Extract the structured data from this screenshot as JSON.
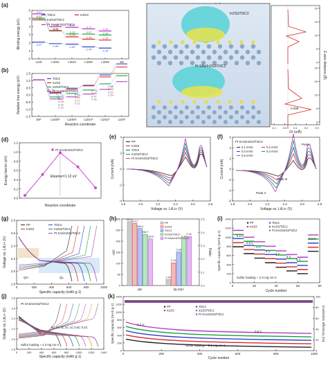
{
  "panels": {
    "a": {
      "letter": "(a)",
      "ylabel": "-Binding energy (eV)",
      "yticks": [
        "6",
        "5",
        "4",
        "3",
        "2",
        "1",
        "0"
      ],
      "xticks": [
        "Li2S",
        "Li2S2",
        "Li2S4",
        "Li2S6",
        "Li2S8",
        "S8"
      ],
      "legend": [
        "Ti3C2",
        "In2S3",
        "In2S3/Ti3C2",
        "Pt SAs/In2S3/Ti3C2"
      ],
      "colors": [
        "#2f44c8",
        "#d62a2a",
        "#1a9e3c",
        "#b23bc5"
      ],
      "chart_data": {
        "type": "line",
        "categories": [
          "Li2S",
          "Li2S2",
          "Li2S4",
          "Li2S6",
          "Li2S8",
          "S8"
        ],
        "series": [
          {
            "name": "Pt SAs/In2S3/Ti3C2",
            "values": [
              5.57,
              3.98,
              3.91,
              3.72,
              3.45,
              null
            ]
          },
          {
            "name": "In2S3/Ti3C2",
            "values": [
              5.03,
              3.46,
              3.09,
              3.07,
              2.96,
              null
            ]
          },
          {
            "name": "In2S3",
            "values": [
              4.83,
              3.51,
              2.73,
              2.44,
              2.33,
              null
            ]
          },
          {
            "name": "Ti3C2",
            "values": [
              2.07,
              1.89,
              1.82,
              1.49,
              1.34,
              null
            ]
          }
        ],
        "extra_labels": [
          "2.44",
          "1.34",
          "1.28"
        ]
      }
    },
    "b": {
      "letter": "(b)",
      "ylabel": "Relative free energy (eV)",
      "xlabel": "Reaction coordinate",
      "yticks": [
        "1.5",
        "1.0",
        "0.5",
        "0.0",
        "-0.5",
        "-1.0",
        "-1.5"
      ],
      "xticks": [
        "S8*",
        "Li2S8*",
        "Li2S6*",
        "Li2S4*",
        "Li2S2*",
        "Li2S*"
      ],
      "legend": [
        "Ti3C2",
        "In2S3",
        "In2S3/Ti3C2",
        "Pt SAs/In2S3/Ti3C2"
      ],
      "labels": [
        "-2.89",
        "-2.98",
        "-3.54",
        "-3.85",
        "0.32",
        "0.28",
        "0.26",
        "0.16",
        "0.22",
        "0.30",
        "0.27",
        "0.21",
        "0.79",
        "0.68",
        "0.47",
        "0.36",
        "0.84",
        "0.75",
        "0.62",
        "0.59"
      ]
    },
    "c": {
      "letter": "(c)",
      "top_label": "In2S3/Ti3C2",
      "bottom_label": "Pt SAs/In2S3/Ti3C2",
      "ylabel": "Z-axis distance (Å)",
      "xlabel": "Dr (e/Å)",
      "yticks_top": [
        "20",
        "15",
        "10",
        "5",
        "0"
      ],
      "yticks_bottom": [
        "20",
        "15",
        "10",
        "5",
        "0"
      ],
      "xticks": [
        "-0.1",
        "0.0",
        "0.1",
        "0.2",
        "0.3"
      ],
      "annotation": "0.098"
    },
    "d": {
      "letter": "(d)",
      "ylabel": "Energy barrier (eV)",
      "xlabel": "Reaction coordinate",
      "yticks": [
        "1.2",
        "1.0",
        "0.8",
        "0.6",
        "0.4",
        "0.2",
        "0.0"
      ],
      "legend": "Pt SAs/In2S3/Ti3C2",
      "annotation": "Ebarrier=1.12 eV",
      "chart_data": {
        "type": "line",
        "x": [
          0,
          1,
          2,
          3,
          4
        ],
        "y": [
          0.0,
          0.55,
          1.12,
          0.75,
          0.2
        ]
      }
    },
    "e": {
      "letter": "(e)",
      "ylabel": "Current (mA)",
      "xlabel": "Voltage vs. Li/Li+ (V)",
      "xticks": [
        "1.8",
        "2.0",
        "2.2",
        "2.4",
        "2.6",
        "2.8"
      ],
      "yticks": [
        "4",
        "2",
        "0",
        "-2",
        "-4"
      ],
      "legend": [
        "PP",
        "In2S3",
        "Ti3C2",
        "In2S3/Ti3C2",
        "Pt SAs/In2S3/Ti3C2"
      ]
    },
    "f": {
      "letter": "(f)",
      "ylabel": "Current (mA)",
      "xlabel": "Voltage vs. Li/Li+ (V)",
      "xticks": [
        "1.8",
        "2.0",
        "2.2",
        "2.4",
        "2.6",
        "2.8"
      ],
      "yticks": [
        "6",
        "4",
        "2",
        "0",
        "-2",
        "-4",
        "-6"
      ],
      "title": "Pt SAs/In2S3/Ti3C2",
      "legend": [
        "0.1 mV/s",
        "0.2 mV/s",
        "0.3 mV/s",
        "0.4 mV/s",
        "0.5 mV/s"
      ],
      "peaks": [
        "Peak I",
        "Peak II",
        "Peak III"
      ]
    },
    "g": {
      "letter": "(g)",
      "ylabel": "Voltage vs. Li/Li+ (V)",
      "xlabel": "Specific capacity (mAh g-1)",
      "xticks": [
        "0",
        "200",
        "400",
        "600",
        "800",
        "1000"
      ],
      "yticks": [
        "2.8",
        "2.6",
        "2.4",
        "2.2",
        "2.0",
        "1.8"
      ],
      "legend": [
        "PP",
        "In2S3",
        "Ti3C2",
        "In2S3/Ti3C2",
        "Pt SAs/In2S3/Ti3C2"
      ],
      "q1": "QH",
      "q2": "QL"
    },
    "h": {
      "letter": "(h)",
      "ylabel_left": "mV",
      "ylabel_right": "Ratio",
      "legend": [
        "PP",
        "In2S3",
        "Ti3C2",
        "In2S3/Ti3C2",
        "Pt SAs/In2S3/Ti3C2"
      ],
      "xticks": [
        "ΔE",
        "QL/QH"
      ],
      "yticks_left": [
        "300",
        "250",
        "200",
        "150",
        "100",
        "50",
        "0"
      ],
      "yticks_right": [
        "2.5",
        "2.4",
        "2.3",
        "2.2",
        "2.1",
        "2.0"
      ],
      "chart_data": {
        "type": "bar",
        "categories": [
          "ΔE",
          "QL/QH"
        ],
        "series": [
          {
            "name": "PP",
            "values": [
              320.2,
              2.05
            ]
          },
          {
            "name": "In2S3",
            "values": [
              311.2,
              2.19
            ]
          },
          {
            "name": "Ti3C2",
            "values": [
              285.4,
              2.28
            ]
          },
          {
            "name": "In2S3/Ti3C2",
            "values": [
              256.7,
              2.39
            ]
          },
          {
            "name": "Pt SAs/In2S3/Ti3C2",
            "values": [
              233.9,
              2.41
            ]
          }
        ]
      }
    },
    "i": {
      "letter": "(i)",
      "ylabel": "Specific capacity (mAh g-1)",
      "xlabel": "Cycle number",
      "xticks": [
        "0",
        "20",
        "40",
        "60",
        "80"
      ],
      "yticks": [
        "1400",
        "1200",
        "1000",
        "800",
        "600",
        "400",
        "200",
        "0"
      ],
      "legend": [
        "PP",
        "In2S3",
        "Ti3C2",
        "In2S3/Ti3C2",
        "Pt SAs/In2S3/Ti3C2"
      ],
      "rates": [
        "0.2 C",
        "0.5 C",
        "1 C",
        "2 C",
        "3 C",
        "4 C",
        "5 C",
        "0.2 C"
      ],
      "loading": "Sulfur loading ~ 2.3 mg cm-2"
    },
    "j": {
      "letter": "(j)",
      "ylabel": "Voltage vs. Li/Li+ (V)",
      "xlabel": "Specific capacity (mAh g-1)",
      "xticks": [
        "0",
        "200",
        "400",
        "600",
        "800",
        "1000",
        "1200",
        "1400"
      ],
      "yticks": [
        "2.8",
        "2.6",
        "2.4",
        "2.2",
        "2.0",
        "1.8"
      ],
      "title": "Pt SAs/In2S3/Ti3C2",
      "rates": "5C 4C 3C 2C 1C 0.5C 0.2C",
      "loading": "Sulfur loading ~ 2.3 mg cm-2"
    },
    "k": {
      "letter": "(k)",
      "ylabel": "Specific capacity (mAh g-1)",
      "ylabel_right": "Coulombic efficiency (%)",
      "xlabel": "Cycle number",
      "xticks": [
        "0",
        "200",
        "400",
        "600",
        "800",
        "1000"
      ],
      "yticks": [
        "1400",
        "1200",
        "1000",
        "800",
        "600",
        "400",
        "200",
        "0"
      ],
      "yticks_right": [
        "100",
        "80",
        "60",
        "40",
        "20",
        "0"
      ],
      "legend": [
        "PP",
        "In2S3",
        "Ti3C2",
        "In2S3/Ti3C2",
        "Pt SAs/In2S3/Ti3C2"
      ],
      "rate1": "0.2 C",
      "rate2": "0.5 C",
      "loading": "Sulfur loading ~ 2.1 mg cm-2"
    }
  }
}
